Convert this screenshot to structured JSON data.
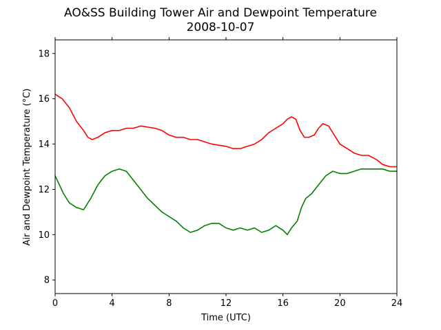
{
  "chart_data": {
    "type": "line",
    "title": "AO&SS Building Tower Air and Dewpoint Temperature",
    "subtitle": "2008-10-07",
    "xlabel": "Time (UTC)",
    "ylabel": "Air and Dewpoint Temperature (°C)",
    "xlim": [
      0,
      24
    ],
    "ylim": [
      7.4,
      18.6
    ],
    "xticks": [
      0,
      4,
      8,
      12,
      16,
      20,
      24
    ],
    "yticks": [
      8,
      10,
      12,
      14,
      16,
      18
    ],
    "grid": false,
    "series": [
      {
        "color": "#ff0000",
        "x": [
          0,
          0.5,
          1,
          1.5,
          2,
          2.3,
          2.6,
          3,
          3.5,
          4,
          4.5,
          5,
          5.5,
          6,
          7,
          7.5,
          8,
          8.5,
          9,
          9.5,
          10,
          11,
          12,
          12.5,
          13,
          13.5,
          14,
          14.5,
          15,
          15.5,
          16,
          16.3,
          16.6,
          16.9,
          17.2,
          17.5,
          17.8,
          18.2,
          18.5,
          18.8,
          19.2,
          19.6,
          20,
          20.5,
          21,
          21.5,
          22,
          22.3,
          22.6,
          23,
          23.5,
          24
        ],
        "y": [
          16.2,
          16.0,
          15.6,
          15.0,
          14.6,
          14.3,
          14.2,
          14.3,
          14.5,
          14.6,
          14.6,
          14.7,
          14.7,
          14.8,
          14.7,
          14.6,
          14.4,
          14.3,
          14.3,
          14.2,
          14.2,
          14.0,
          13.9,
          13.8,
          13.8,
          13.9,
          14.0,
          14.2,
          14.5,
          14.7,
          14.9,
          15.1,
          15.2,
          15.1,
          14.6,
          14.3,
          14.3,
          14.4,
          14.7,
          14.9,
          14.8,
          14.4,
          14.0,
          13.8,
          13.6,
          13.5,
          13.5,
          13.4,
          13.3,
          13.1,
          13.0,
          13.0
        ]
      },
      {
        "color": "#008000",
        "x": [
          0,
          0.3,
          0.6,
          1,
          1.5,
          2,
          2.5,
          3,
          3.5,
          4,
          4.5,
          5,
          5.5,
          6,
          6.5,
          7,
          7.5,
          8,
          8.5,
          9,
          9.5,
          10,
          10.5,
          11,
          11.5,
          12,
          12.5,
          13,
          13.5,
          14,
          14.5,
          15,
          15.5,
          16,
          16.3,
          16.6,
          17,
          17.3,
          17.6,
          18,
          18.5,
          19,
          19.5,
          20,
          20.5,
          21,
          21.5,
          22,
          22.5,
          23,
          23.5,
          24
        ],
        "y": [
          12.6,
          12.2,
          11.8,
          11.4,
          11.2,
          11.1,
          11.6,
          12.2,
          12.6,
          12.8,
          12.9,
          12.8,
          12.4,
          12.0,
          11.6,
          11.3,
          11.0,
          10.8,
          10.6,
          10.3,
          10.1,
          10.2,
          10.4,
          10.5,
          10.5,
          10.3,
          10.2,
          10.3,
          10.2,
          10.3,
          10.1,
          10.2,
          10.4,
          10.2,
          10.0,
          10.3,
          10.6,
          11.2,
          11.6,
          11.8,
          12.2,
          12.6,
          12.8,
          12.7,
          12.7,
          12.8,
          12.9,
          12.9,
          12.9,
          12.9,
          12.8,
          12.8
        ]
      }
    ]
  }
}
